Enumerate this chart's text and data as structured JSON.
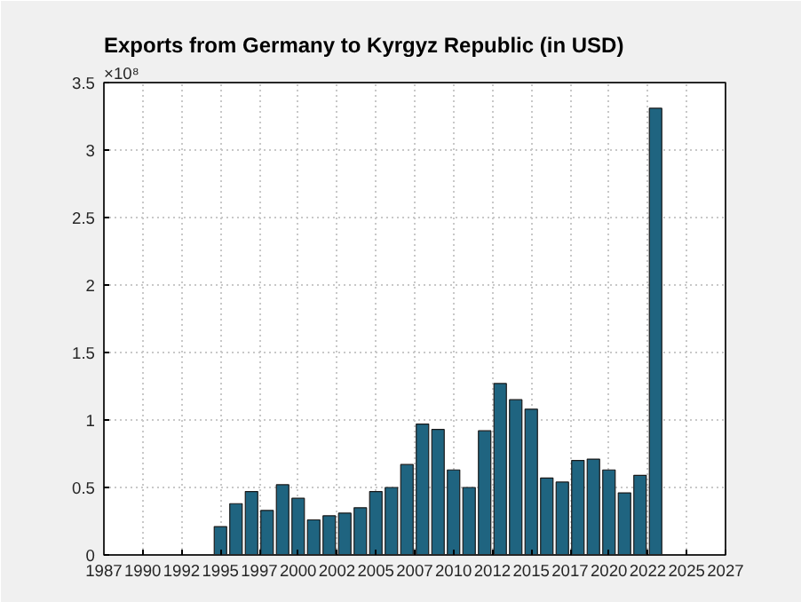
{
  "chart_data": {
    "type": "bar",
    "title": "Exports from Germany to Kyrgyz Republic (in USD)",
    "annotations": [
      "×10⁸"
    ],
    "x": [
      1995,
      1996,
      1997,
      1998,
      1999,
      2000,
      2001,
      2002,
      2003,
      2004,
      2005,
      2006,
      2007,
      2008,
      2009,
      2010,
      2011,
      2012,
      2013,
      2014,
      2015,
      2016,
      2017,
      2018,
      2019,
      2020,
      2021,
      2022,
      2023
    ],
    "values": [
      0.21,
      0.38,
      0.47,
      0.33,
      0.52,
      0.42,
      0.26,
      0.29,
      0.31,
      0.35,
      0.47,
      0.5,
      0.67,
      0.97,
      0.93,
      0.63,
      0.5,
      0.92,
      1.27,
      1.15,
      1.08,
      0.57,
      0.54,
      0.7,
      0.71,
      0.63,
      0.46,
      0.59,
      3.31
    ],
    "color": "#1f6480",
    "xlim": [
      1987.5,
      2027.5
    ],
    "xticks": [
      {
        "value": 1987.5,
        "label": "1987"
      },
      {
        "value": 1990,
        "label": "1990"
      },
      {
        "value": 1992.5,
        "label": "1992"
      },
      {
        "value": 1995,
        "label": "1995"
      },
      {
        "value": 1997.5,
        "label": "1997"
      },
      {
        "value": 2000,
        "label": "2000"
      },
      {
        "value": 2002.5,
        "label": "2002"
      },
      {
        "value": 2005,
        "label": "2005"
      },
      {
        "value": 2007.5,
        "label": "2007"
      },
      {
        "value": 2010,
        "label": "2010"
      },
      {
        "value": 2012.5,
        "label": "2012"
      },
      {
        "value": 2015,
        "label": "2015"
      },
      {
        "value": 2017.5,
        "label": "2017"
      },
      {
        "value": 2020,
        "label": "2020"
      },
      {
        "value": 2022.5,
        "label": "2022"
      },
      {
        "value": 2025,
        "label": "2025"
      },
      {
        "value": 2027.5,
        "label": "2027"
      }
    ],
    "ylim": [
      0,
      3.5
    ],
    "yticks": [
      0,
      0.5,
      1,
      1.5,
      2,
      2.5,
      3,
      3.5
    ],
    "grid": true
  }
}
